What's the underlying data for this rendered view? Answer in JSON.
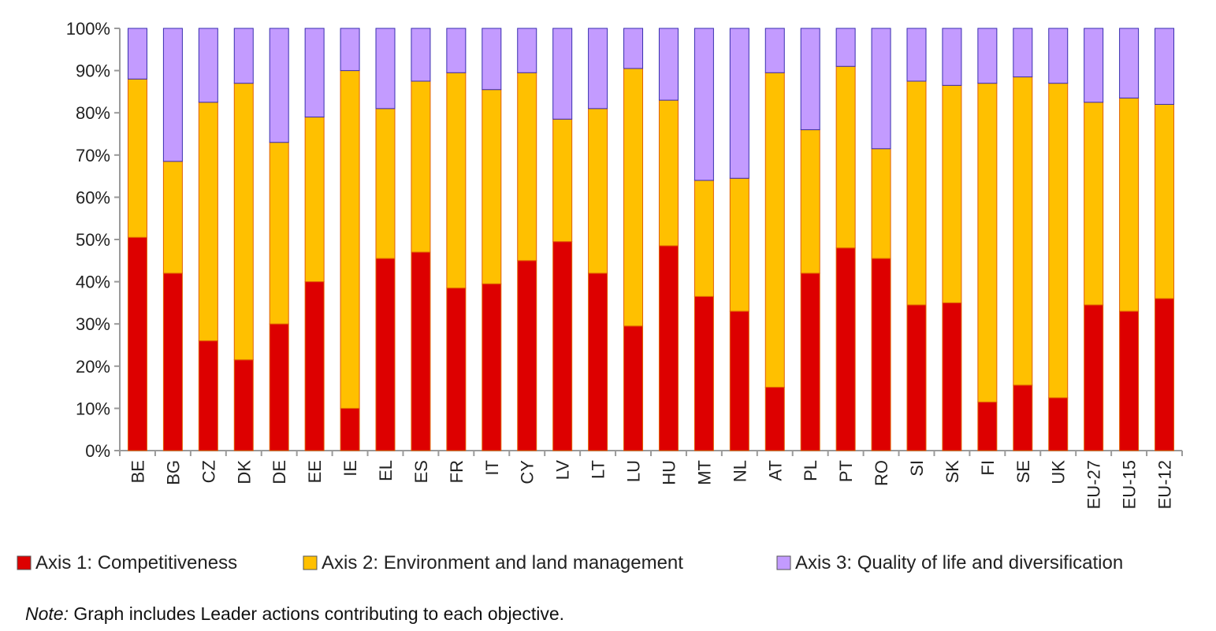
{
  "chart_data": {
    "type": "bar",
    "stacked": true,
    "percent": true,
    "categories": [
      "BE",
      "BG",
      "CZ",
      "DK",
      "DE",
      "EE",
      "IE",
      "EL",
      "ES",
      "FR",
      "IT",
      "CY",
      "LV",
      "LT",
      "LU",
      "HU",
      "MT",
      "NL",
      "AT",
      "PL",
      "PT",
      "RO",
      "SI",
      "SK",
      "FI",
      "SE",
      "UK",
      "EU-27",
      "EU-15",
      "EU-12"
    ],
    "series": [
      {
        "name": "Axis 1: Competitiveness",
        "color": "#dd0000",
        "values": [
          50.5,
          42,
          26,
          21.5,
          30,
          40,
          10,
          45.5,
          47,
          38.5,
          39.5,
          45,
          49.5,
          42,
          29.5,
          48.5,
          36.5,
          33,
          15,
          42,
          48,
          45.5,
          34.5,
          35,
          11.5,
          15.5,
          12.5,
          34.5,
          33,
          36
        ]
      },
      {
        "name": "Axis 2: Environment and land management",
        "color": "#ffc000",
        "values": [
          37.5,
          26.5,
          56.5,
          65.5,
          43,
          39,
          80,
          35.5,
          40.5,
          51,
          46,
          44.5,
          29,
          39,
          61,
          34.5,
          27.5,
          31.5,
          74.5,
          34,
          43,
          26,
          53,
          51.5,
          75.5,
          73,
          74.5,
          48,
          50.5,
          46
        ]
      },
      {
        "name": "Axis 3: Quality of life and diversification",
        "color": "#c39bff",
        "values": [
          12,
          31.5,
          17.5,
          13,
          27,
          21,
          10,
          19,
          12.5,
          10.5,
          14.5,
          10.5,
          21.5,
          19,
          9.5,
          17,
          36,
          35.5,
          10.5,
          24,
          9,
          28.5,
          12.5,
          13.5,
          13,
          11.5,
          13,
          17.5,
          16.5,
          18
        ]
      }
    ],
    "yticks": [
      "0%",
      "10%",
      "20%",
      "30%",
      "40%",
      "50%",
      "60%",
      "70%",
      "80%",
      "90%",
      "100%"
    ],
    "ylim": [
      0,
      100
    ],
    "legend_position": "bottom",
    "grid": false
  },
  "note": {
    "label": "Note:",
    "text": " Graph includes Leader actions contributing to each objective."
  }
}
